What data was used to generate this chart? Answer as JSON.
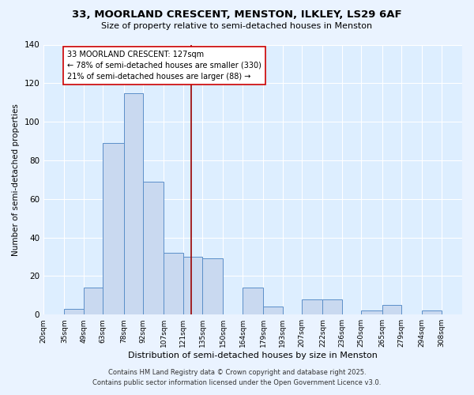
{
  "title": "33, MOORLAND CRESCENT, MENSTON, ILKLEY, LS29 6AF",
  "subtitle": "Size of property relative to semi-detached houses in Menston",
  "xlabel": "Distribution of semi-detached houses by size in Menston",
  "ylabel": "Number of semi-detached properties",
  "bin_labels": [
    "20sqm",
    "35sqm",
    "49sqm",
    "63sqm",
    "78sqm",
    "92sqm",
    "107sqm",
    "121sqm",
    "135sqm",
    "150sqm",
    "164sqm",
    "179sqm",
    "193sqm",
    "207sqm",
    "222sqm",
    "236sqm",
    "250sqm",
    "265sqm",
    "279sqm",
    "294sqm",
    "308sqm"
  ],
  "bar_values": [
    0,
    3,
    14,
    89,
    115,
    69,
    32,
    30,
    29,
    0,
    14,
    4,
    0,
    8,
    8,
    0,
    2,
    5,
    0,
    2,
    0
  ],
  "bar_color": "#c9d9f0",
  "bar_edge_color": "#5b8fc9",
  "vline_x": 127,
  "vline_color": "#990000",
  "annotation_title": "33 MOORLAND CRESCENT: 127sqm",
  "annotation_line1": "← 78% of semi-detached houses are smaller (330)",
  "annotation_line2": "21% of semi-detached houses are larger (88) →",
  "annotation_box_color": "#ffffff",
  "annotation_box_edge": "#cc0000",
  "ylim": [
    0,
    140
  ],
  "yticks": [
    0,
    20,
    40,
    60,
    80,
    100,
    120,
    140
  ],
  "footer1": "Contains HM Land Registry data © Crown copyright and database right 2025.",
  "footer2": "Contains public sector information licensed under the Open Government Licence v3.0.",
  "bg_color": "#eaf3ff",
  "plot_bg_color": "#ddeeff",
  "grid_color": "#ffffff",
  "bin_edges": [
    20,
    35,
    49,
    63,
    78,
    92,
    107,
    121,
    135,
    150,
    164,
    179,
    193,
    207,
    222,
    236,
    250,
    265,
    279,
    294,
    308,
    323
  ]
}
